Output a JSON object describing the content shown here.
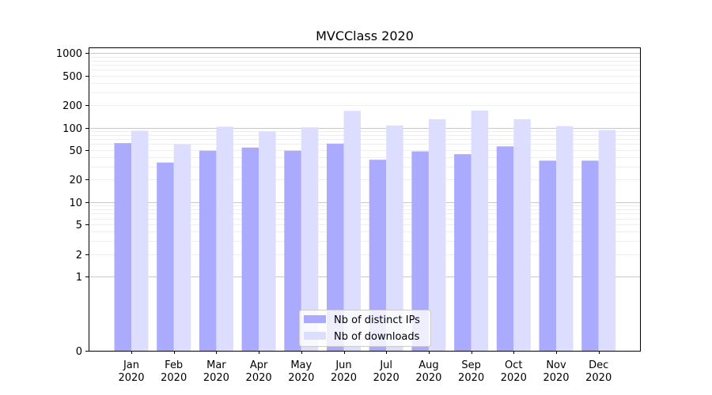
{
  "chart_data": {
    "type": "bar",
    "title": "MVCClass 2020",
    "xlabel": "",
    "ylabel": "",
    "yscale": "symlog",
    "ylim": [
      0,
      1200
    ],
    "yticks": [
      0,
      1,
      2,
      5,
      10,
      20,
      50,
      100,
      200,
      500,
      1000
    ],
    "ytick_labels": [
      "0",
      "1",
      "2",
      "5",
      "10",
      "20",
      "50",
      "100",
      "200",
      "500",
      "1000"
    ],
    "categories": [
      "Jan",
      "Feb",
      "Mar",
      "Apr",
      "May",
      "Jun",
      "Jul",
      "Aug",
      "Sep",
      "Oct",
      "Nov",
      "Dec"
    ],
    "category_year": "2020",
    "grid": true,
    "legend_position": "bottom-center",
    "series": [
      {
        "name": "Nb of distinct IPs",
        "color": "#aaaaff",
        "values": [
          62,
          34,
          49,
          54,
          49,
          61,
          37,
          48,
          44,
          56,
          36,
          36
        ]
      },
      {
        "name": "Nb of downloads",
        "color": "#ddddff",
        "values": [
          91,
          60,
          103,
          89,
          101,
          168,
          107,
          130,
          170,
          130,
          105,
          93
        ]
      }
    ]
  }
}
